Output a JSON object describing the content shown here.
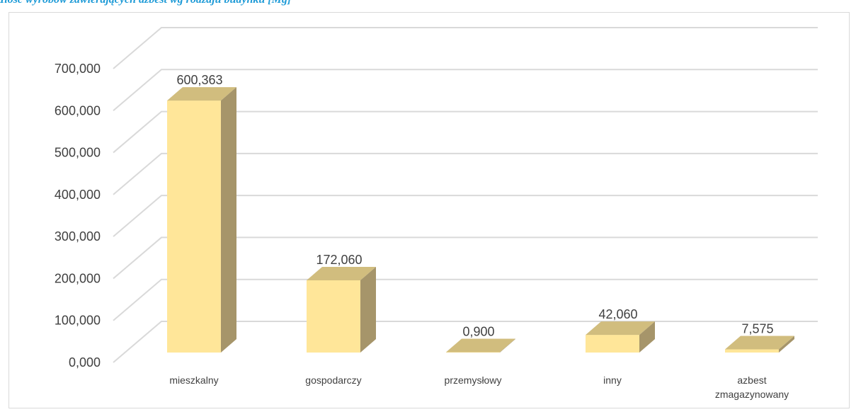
{
  "caption": "Ilość wyrobów zawierających azbest wg rodzaju budynku [Mg]",
  "chart_data": {
    "type": "bar",
    "title": "",
    "xlabel": "",
    "ylabel": "",
    "ylim": [
      0,
      700
    ],
    "yticks": [
      "0,000",
      "100,000",
      "200,000",
      "300,000",
      "400,000",
      "500,000",
      "600,000",
      "700,000"
    ],
    "categories": [
      [
        "mieszkalny"
      ],
      [
        "gospodarczy"
      ],
      [
        "przemysłowy"
      ],
      [
        "inny"
      ],
      [
        "azbest",
        "zmagazynowany"
      ]
    ],
    "values": [
      600.363,
      172.06,
      0.9,
      42.06,
      7.575
    ],
    "value_labels": [
      "600,363",
      "172,060",
      "0,900",
      "42,060",
      "7,575"
    ],
    "grid": true,
    "style": "3d-column",
    "colors": {
      "bar_front": "#ffe699",
      "bar_top": "#d1bd7e",
      "bar_side": "#a6956a",
      "grid": "#d9d9d9",
      "text": "#404040"
    }
  }
}
